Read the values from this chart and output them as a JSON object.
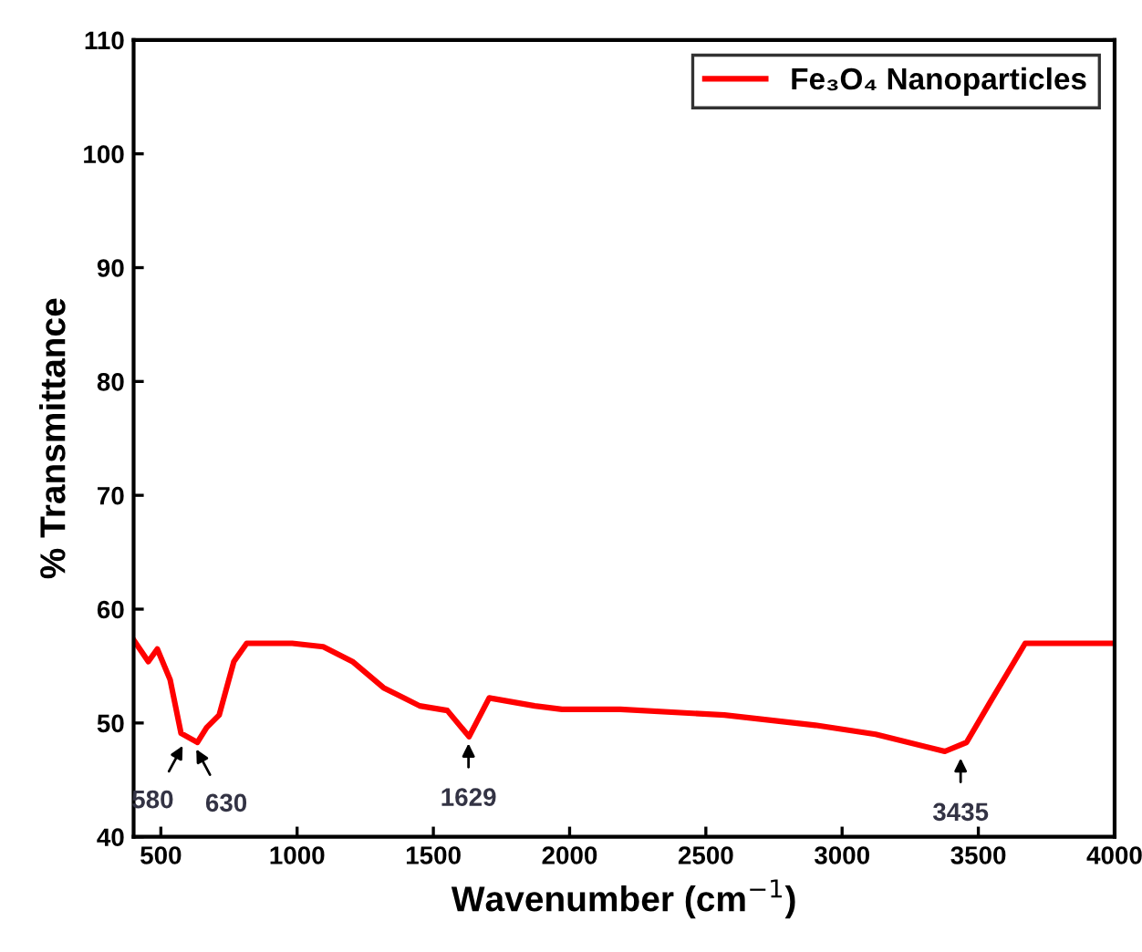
{
  "chart_data": {
    "type": "line",
    "xlabel": "Wavenumber (cm$^{−1}$)",
    "ylabel": "% Transmittance",
    "xlim": [
      400,
      4000
    ],
    "ylim": [
      40,
      110
    ],
    "xticks": [
      500,
      1000,
      1500,
      2000,
      2500,
      3000,
      3500,
      4000
    ],
    "yticks": [
      40,
      50,
      60,
      70,
      80,
      90,
      100,
      110
    ],
    "grid": false,
    "legend": "top right",
    "marker": "none",
    "line_style": "solid",
    "series": [
      {
        "name": "Fe₃O₄ Nanoparticles",
        "color": "#ff0000",
        "x": [
          400,
          454,
          487,
          534,
          574,
          634,
          668,
          714,
          768,
          815,
          982,
          1096,
          1203,
          1317,
          1450,
          1551,
          1631,
          1705,
          1872,
          1972,
          2186,
          2568,
          2902,
          3123,
          3377,
          3457,
          3545,
          3672,
          3725,
          3993
        ],
        "values": [
          57.3,
          55.4,
          56.5,
          53.8,
          49.1,
          48.3,
          49.6,
          50.7,
          55.4,
          57.0,
          57.0,
          56.7,
          55.4,
          53.1,
          51.5,
          51.1,
          48.8,
          52.2,
          51.5,
          51.2,
          51.2,
          50.7,
          49.8,
          49.0,
          47.5,
          48.3,
          51.9,
          57.0,
          57.0,
          57.0
        ]
      }
    ],
    "annotations": [
      {
        "text": "580",
        "x": 580,
        "y": 48.6
      },
      {
        "text": "630",
        "x": 630,
        "y": 48.3
      },
      {
        "text": "1629",
        "x": 1629,
        "y": 48.8
      },
      {
        "text": "3435",
        "x": 3435,
        "y": 47.5
      }
    ]
  }
}
